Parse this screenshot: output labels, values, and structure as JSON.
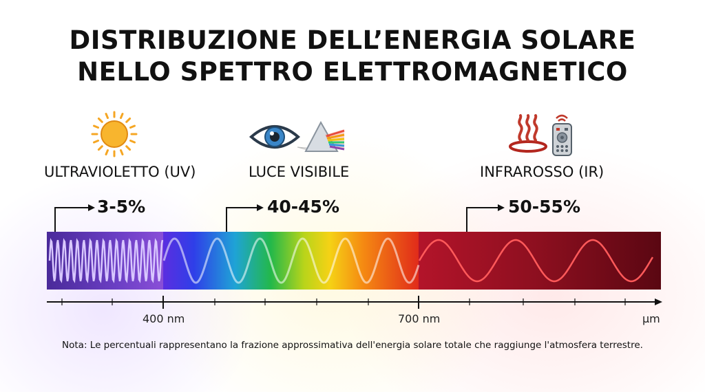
{
  "title": {
    "line1": "DISTRIBUZIONE DELL’ENERGIA SOLARE",
    "line2": "NELLO SPETTRO ELETTROMAGNETICO"
  },
  "bands": [
    {
      "label": "ULTRAVIOLETTO (UV)",
      "percent": "3-5%",
      "icons": [
        "sun-icon"
      ]
    },
    {
      "label": "LUCE VISIBILE",
      "percent": "40-45%",
      "icons": [
        "eye-icon",
        "prism-icon"
      ]
    },
    {
      "label": "INFRAROSSO (IR)",
      "percent": "50-55%",
      "icons": [
        "heat-waves-icon",
        "remote-control-icon"
      ]
    }
  ],
  "axis": {
    "tick_labels": [
      "400 nm",
      "700 nm",
      "µm"
    ]
  },
  "colors": {
    "uv": "#6a3fbf",
    "ir": "#8c0f1f",
    "sun": "#f5a623",
    "heat": "#c0392b"
  },
  "note": "Nota: Le percentuali rappresentano la frazione approssimativa dell'energia solare totale che raggiunge l'atmosfera terrestre."
}
